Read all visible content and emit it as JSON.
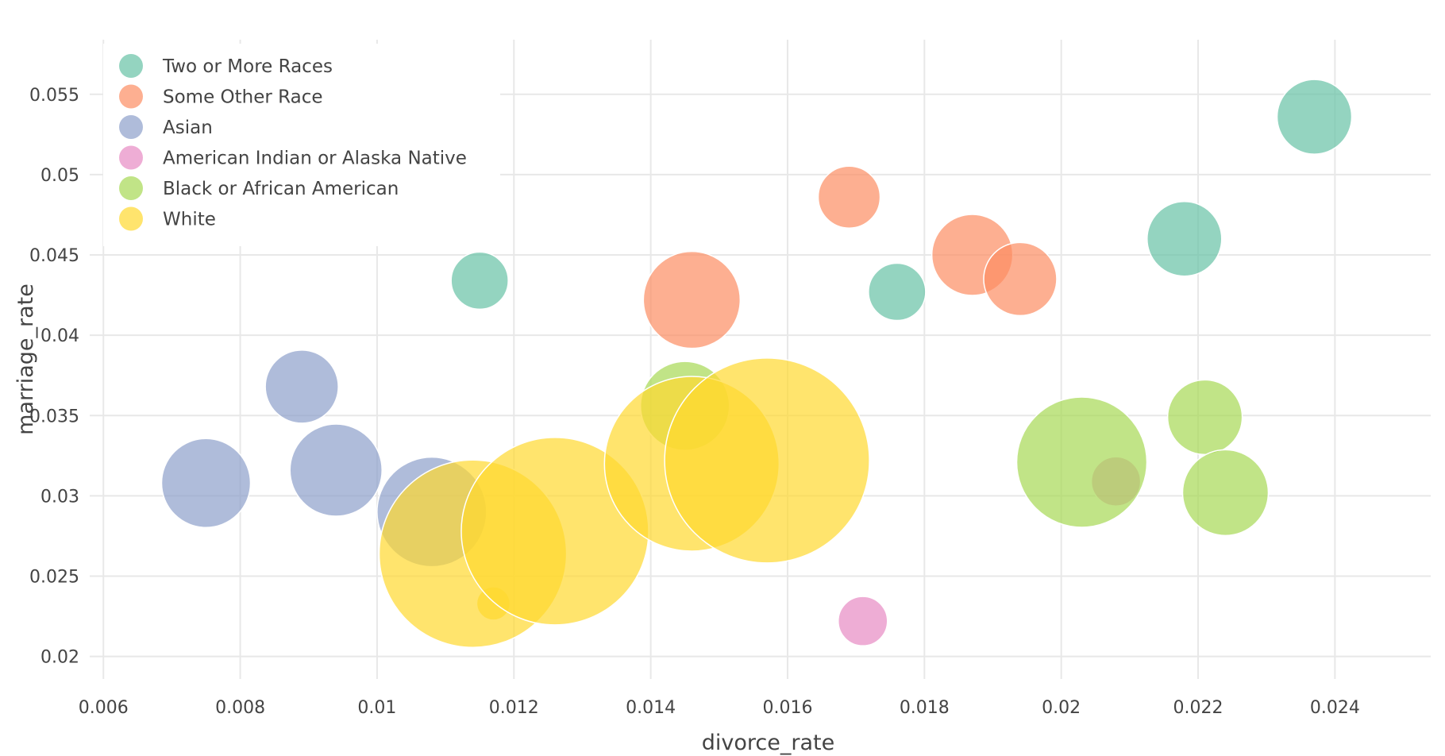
{
  "chart_data": {
    "type": "scatter",
    "xlabel": "divorce_rate",
    "ylabel": "marriage_rate",
    "xlim": [
      0.0058,
      0.0254
    ],
    "ylim": [
      0.0186,
      0.0584
    ],
    "x_ticks": [
      0.006,
      0.008,
      0.01,
      0.012,
      0.014,
      0.016,
      0.018,
      0.02,
      0.022,
      0.024
    ],
    "x_tick_labels": [
      "0.006",
      "0.008",
      "0.01",
      "0.012",
      "0.014",
      "0.016",
      "0.018",
      "0.02",
      "0.022",
      "0.024"
    ],
    "y_ticks": [
      0.02,
      0.025,
      0.03,
      0.035,
      0.04,
      0.045,
      0.05,
      0.055
    ],
    "y_tick_labels": [
      "0.02",
      "0.025",
      "0.03",
      "0.035",
      "0.04",
      "0.045",
      "0.05",
      "0.055"
    ],
    "grid": true,
    "legend_position": "top-left",
    "bubble_size": "proportional to third variable (unlabeled); relative radii shown",
    "series": [
      {
        "name": "Two or More Races",
        "color": "#66c2a5",
        "points": [
          {
            "x": 0.0115,
            "y": 0.0434,
            "r": 36
          },
          {
            "x": 0.0176,
            "y": 0.0427,
            "r": 36
          },
          {
            "x": 0.0218,
            "y": 0.046,
            "r": 47
          },
          {
            "x": 0.0237,
            "y": 0.0536,
            "r": 47
          }
        ]
      },
      {
        "name": "Some Other Race",
        "color": "#fc8d62",
        "points": [
          {
            "x": 0.0169,
            "y": 0.0486,
            "r": 39
          },
          {
            "x": 0.0146,
            "y": 0.0422,
            "r": 61
          },
          {
            "x": 0.0187,
            "y": 0.045,
            "r": 51
          },
          {
            "x": 0.0194,
            "y": 0.0435,
            "r": 46
          }
        ]
      },
      {
        "name": "Asian",
        "color": "#8da0cb",
        "points": [
          {
            "x": 0.0075,
            "y": 0.0308,
            "r": 56
          },
          {
            "x": 0.0089,
            "y": 0.0368,
            "r": 46
          },
          {
            "x": 0.0094,
            "y": 0.0316,
            "r": 58
          },
          {
            "x": 0.0108,
            "y": 0.029,
            "r": 69
          }
        ]
      },
      {
        "name": "American Indian or Alaska Native",
        "color": "#e78ac3",
        "points": [
          {
            "x": 0.0171,
            "y": 0.0222,
            "r": 31
          },
          {
            "x": 0.0208,
            "y": 0.0309,
            "r": 31
          }
        ]
      },
      {
        "name": "Black or African American",
        "color": "#a6d854",
        "points": [
          {
            "x": 0.0145,
            "y": 0.0356,
            "r": 56
          },
          {
            "x": 0.0203,
            "y": 0.0321,
            "r": 82
          },
          {
            "x": 0.0221,
            "y": 0.0349,
            "r": 47
          },
          {
            "x": 0.0224,
            "y": 0.0302,
            "r": 54
          }
        ]
      },
      {
        "name": "White",
        "color": "#ffd92f",
        "points": [
          {
            "x": 0.0117,
            "y": 0.0233,
            "r": 21
          },
          {
            "x": 0.0114,
            "y": 0.0264,
            "r": 118
          },
          {
            "x": 0.0126,
            "y": 0.0278,
            "r": 118
          },
          {
            "x": 0.0146,
            "y": 0.032,
            "r": 110
          },
          {
            "x": 0.0157,
            "y": 0.0322,
            "r": 129
          }
        ]
      }
    ]
  }
}
